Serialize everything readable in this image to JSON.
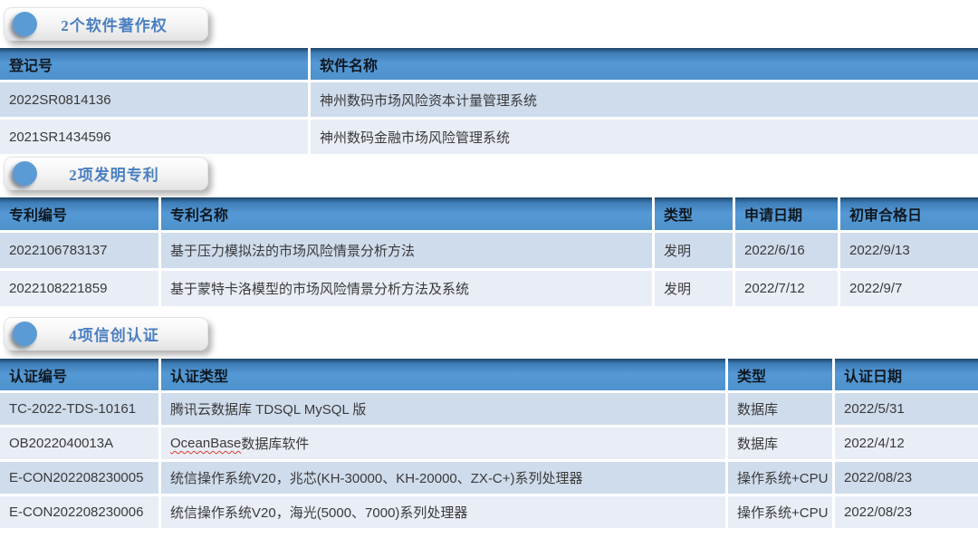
{
  "theme": {
    "header_blue": "#4e92cc",
    "header_blue_dark_top": "#1d4466",
    "row_light_blue": "#cfdcec",
    "row_lighter": "#e9edf6",
    "badge_text_blue": "#4a7fc1",
    "dot_blue": "#5b9bd5",
    "header_text": "#101820",
    "body_text": "#3a3a3a"
  },
  "sections": [
    {
      "id": "software-copyrights",
      "badge": "2个软件著作权",
      "table": {
        "columns": [
          "登记号",
          "软件名称"
        ],
        "rows": [
          [
            "2022SR0814136",
            "神州数码市场风险资本计量管理系统"
          ],
          [
            "2021SR1434596",
            "神州数码金融市场风险管理系统"
          ]
        ]
      }
    },
    {
      "id": "invention-patents",
      "badge": "2项发明专利",
      "table": {
        "columns": [
          "专利编号",
          "专利名称",
          "类型",
          "申请日期",
          "初审合格日"
        ],
        "rows": [
          [
            "2022106783137",
            "基于压力模拟法的市场风险情景分析方法",
            "发明",
            "2022/6/16",
            "2022/9/13"
          ],
          [
            "2022108221859",
            "基于蒙特卡洛模型的市场风险情景分析方法及系统",
            "发明",
            "2022/7/12",
            "2022/9/7"
          ]
        ]
      }
    },
    {
      "id": "xinchuang-certifications",
      "badge": "4项信创认证",
      "table": {
        "columns": [
          "认证编号",
          "认证类型",
          "类型",
          "认证日期"
        ],
        "rows": [
          [
            "TC-2022-TDS-10161",
            "腾讯云数据库 TDSQL MySQL 版",
            "数据库",
            "2022/5/31"
          ],
          [
            "OB2022040013A",
            "OceanBase数据库软件",
            "数据库",
            "2022/4/12"
          ],
          [
            "E-CON202208230005",
            "统信操作系统V20，兆芯(KH-30000、KH-20000、ZX-C+)系列处理器",
            "操作系统+CPU",
            "2022/08/23"
          ],
          [
            "E-CON202208230006",
            "统信操作系统V20，海光(5000、7000)系列处理器",
            "操作系统+CPU",
            "2022/08/23"
          ]
        ],
        "spellcheck_underline": {
          "row": 1,
          "col": 1,
          "substring": "OceanBase"
        }
      }
    }
  ]
}
